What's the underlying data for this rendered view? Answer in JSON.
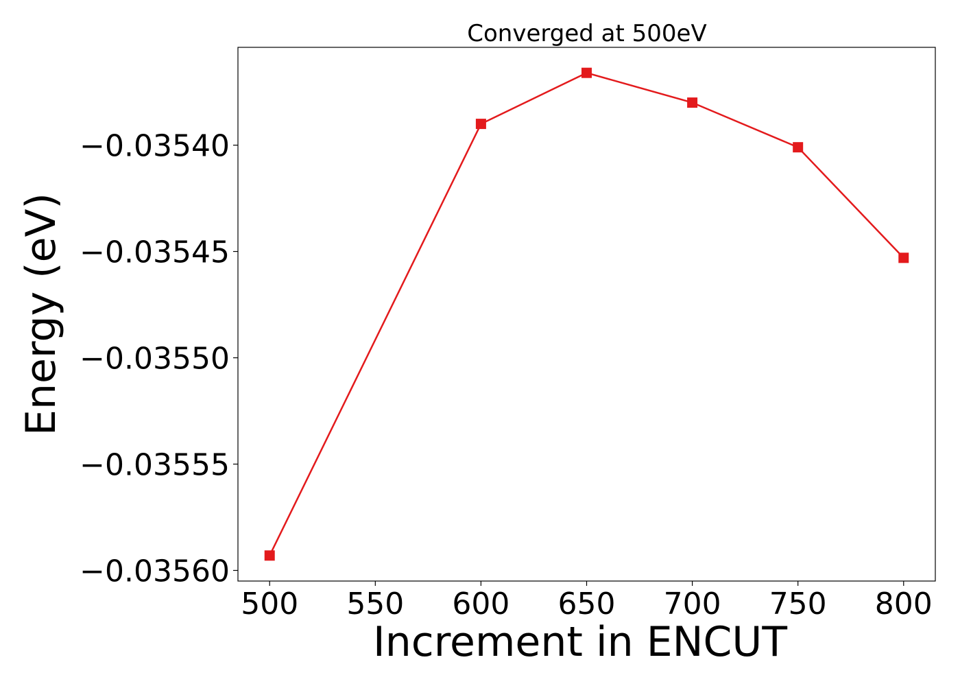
{
  "chart_data": {
    "type": "line",
    "title": "Converged at 500eV",
    "xlabel": "Increment in ENCUT",
    "ylabel": "Energy (eV)",
    "x": [
      500,
      600,
      650,
      700,
      750,
      800
    ],
    "series": [
      {
        "values": [
          -0.035593,
          -0.03539,
          -0.035366,
          -0.03538,
          -0.035401,
          -0.035453
        ],
        "color": "#e31a1c",
        "marker": "square"
      }
    ],
    "x_ticks": [
      500,
      550,
      600,
      650,
      700,
      750,
      800
    ],
    "x_tick_labels": [
      "500",
      "550",
      "600",
      "650",
      "700",
      "750",
      "800"
    ],
    "y_ticks": [
      -0.0356,
      -0.03555,
      -0.0355,
      -0.03545,
      -0.0354
    ],
    "y_tick_labels": [
      "−0.03560",
      "−0.03555",
      "−0.03550",
      "−0.03545",
      "−0.03540"
    ],
    "xlim": [
      485,
      815
    ],
    "ylim": [
      -0.035605,
      -0.035354
    ],
    "grid": false,
    "legend": "none"
  }
}
